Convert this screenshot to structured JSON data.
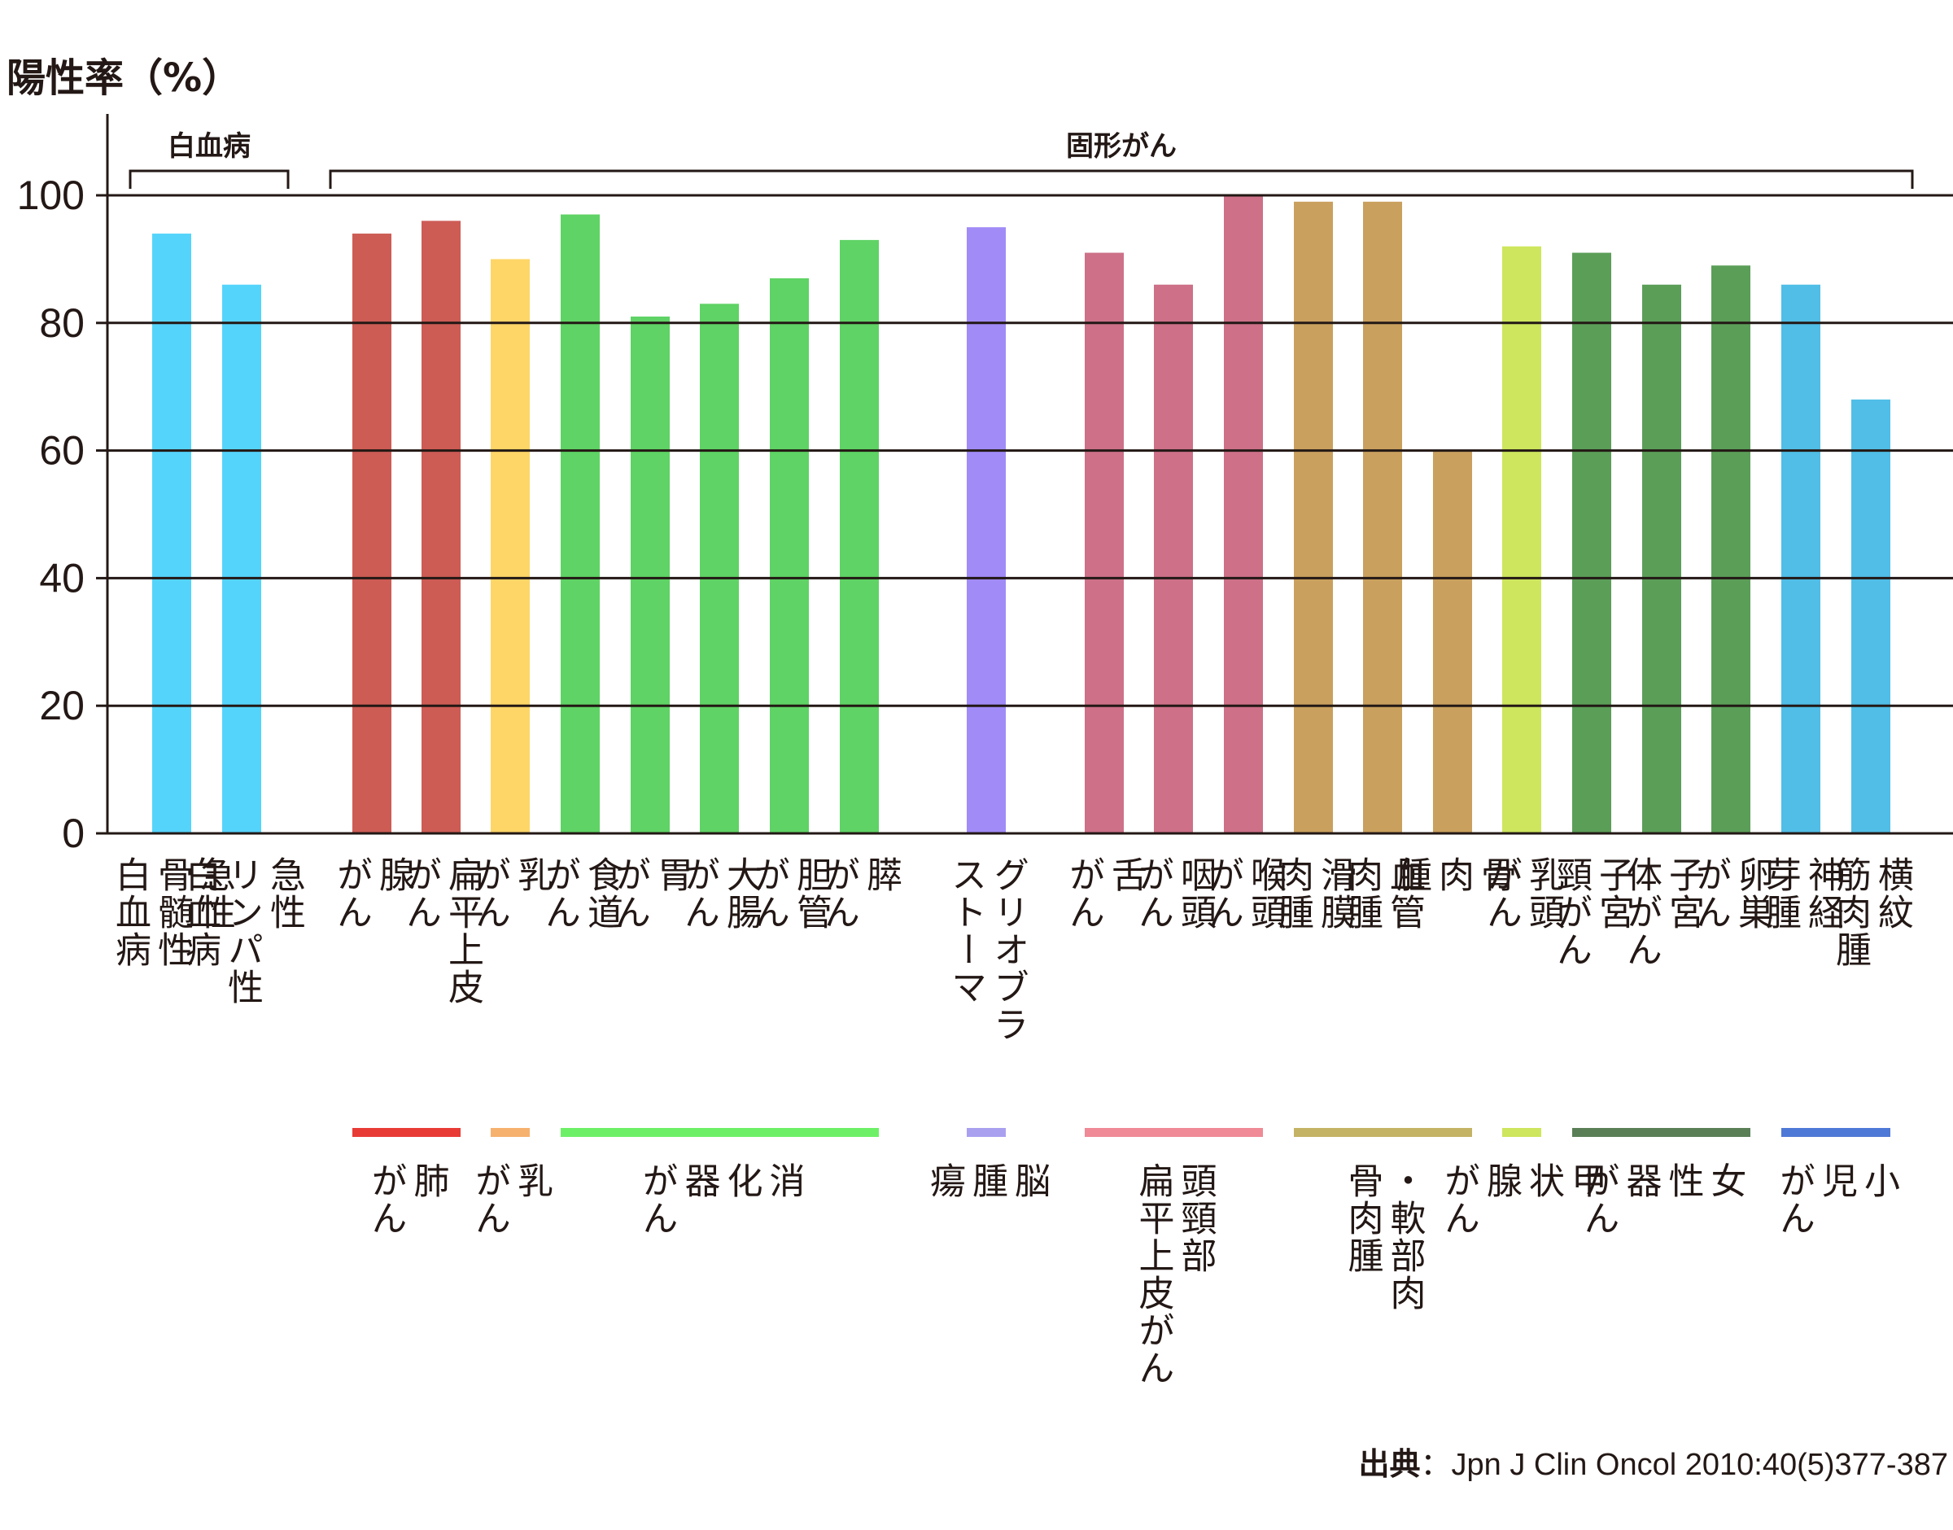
{
  "chart_data": {
    "type": "bar",
    "ylabel": "陽性率（%）",
    "ylim": [
      0,
      100
    ],
    "yticks": [
      "0",
      "20",
      "40",
      "60",
      "80",
      "100"
    ],
    "grid": "horizontal",
    "categories": [
      "急性骨髄性白血病",
      "急性リンパ性白血病",
      "腺がん",
      "扁平上皮がん",
      "乳がん",
      "食道がん",
      "胃がん",
      "大腸がん",
      "胆管がん",
      "膵がん",
      "グリオブラストーマ",
      "舌がん",
      "咽頭がん",
      "喉頭がん",
      "滑膜肉腫",
      "血管肉腫",
      "骨肉腫",
      "乳頭がん",
      "子宮頸がん",
      "子宮体がん",
      "卵巣がん",
      "神経芽腫",
      "横紋筋肉腫"
    ],
    "category_labels": [
      "急性\n骨髄性\n白血病",
      "急性\nリンパ性\n白血病",
      "腺\nがん",
      "扁平上皮\nがん",
      "乳\nがん",
      "食道\nがん",
      "胃\nがん",
      "大腸\nがん",
      "胆管\nがん",
      "膵\nがん",
      "グリオブラ\nストーマ",
      "舌\nがん",
      "咽頭\nがん",
      "喉頭\nがん",
      "滑膜\n肉腫",
      "血管\n肉腫",
      "骨\n肉\n腫",
      "乳頭\nがん",
      "子宮\n頸がん",
      "子宮\n体がん",
      "卵巣\nがん",
      "神経\n芽腫",
      "横紋\n筋肉腫"
    ],
    "values": [
      94,
      86,
      94,
      96,
      90,
      97,
      81,
      83,
      87,
      93,
      95,
      91,
      86,
      100,
      99,
      99,
      60,
      92,
      91,
      86,
      89,
      86,
      68
    ],
    "bar_colors": [
      "#55d4fb",
      "#55d4fb",
      "#cd5c55",
      "#cd5c55",
      "#fed567",
      "#5fd365",
      "#5fd365",
      "#5fd365",
      "#5fd365",
      "#5fd365",
      "#a18bf7",
      "#cd7088",
      "#cd7088",
      "#cd7088",
      "#caa05e",
      "#caa05e",
      "#caa05e",
      "#cde65d",
      "#5b9e58",
      "#5b9e58",
      "#5b9e58",
      "#50bee6",
      "#50bee6"
    ],
    "top_groups": [
      {
        "label": "白血病",
        "from": 0,
        "to": 1
      },
      {
        "label": "固形がん",
        "from": 2,
        "to": 22
      }
    ],
    "sub_groups": [
      {
        "label": "肺\nがん",
        "from": 2,
        "to": 3,
        "color": "#e83b36"
      },
      {
        "label": "乳\nがん",
        "from": 4,
        "to": 4,
        "color": "#f6b16e"
      },
      {
        "label": "消\n化\n器\nがん",
        "from": 5,
        "to": 9,
        "color": "#6df067"
      },
      {
        "label": "脳\n腫\n瘍",
        "from": 10,
        "to": 10,
        "color": "#a9a0f0"
      },
      {
        "label": "頭頸部\n扁平上皮がん",
        "from": 11,
        "to": 13,
        "color": "#ef8a96"
      },
      {
        "label": "・軟部肉\n骨肉腫",
        "from": 14,
        "to": 16,
        "color": "#c4b364"
      },
      {
        "label": "甲\n状\n腺\nがん",
        "from": 17,
        "to": 17,
        "color": "#cde65d"
      },
      {
        "label": "女\n性\n器\nがん",
        "from": 18,
        "to": 20,
        "color": "#5a7f57"
      },
      {
        "label": "小\n児\nがん",
        "from": 21,
        "to": 22,
        "color": "#4f79d6"
      }
    ]
  },
  "source_label": "出典",
  "source_text": "：Jpn J Clin Oncol 2010:40(5)377-387"
}
